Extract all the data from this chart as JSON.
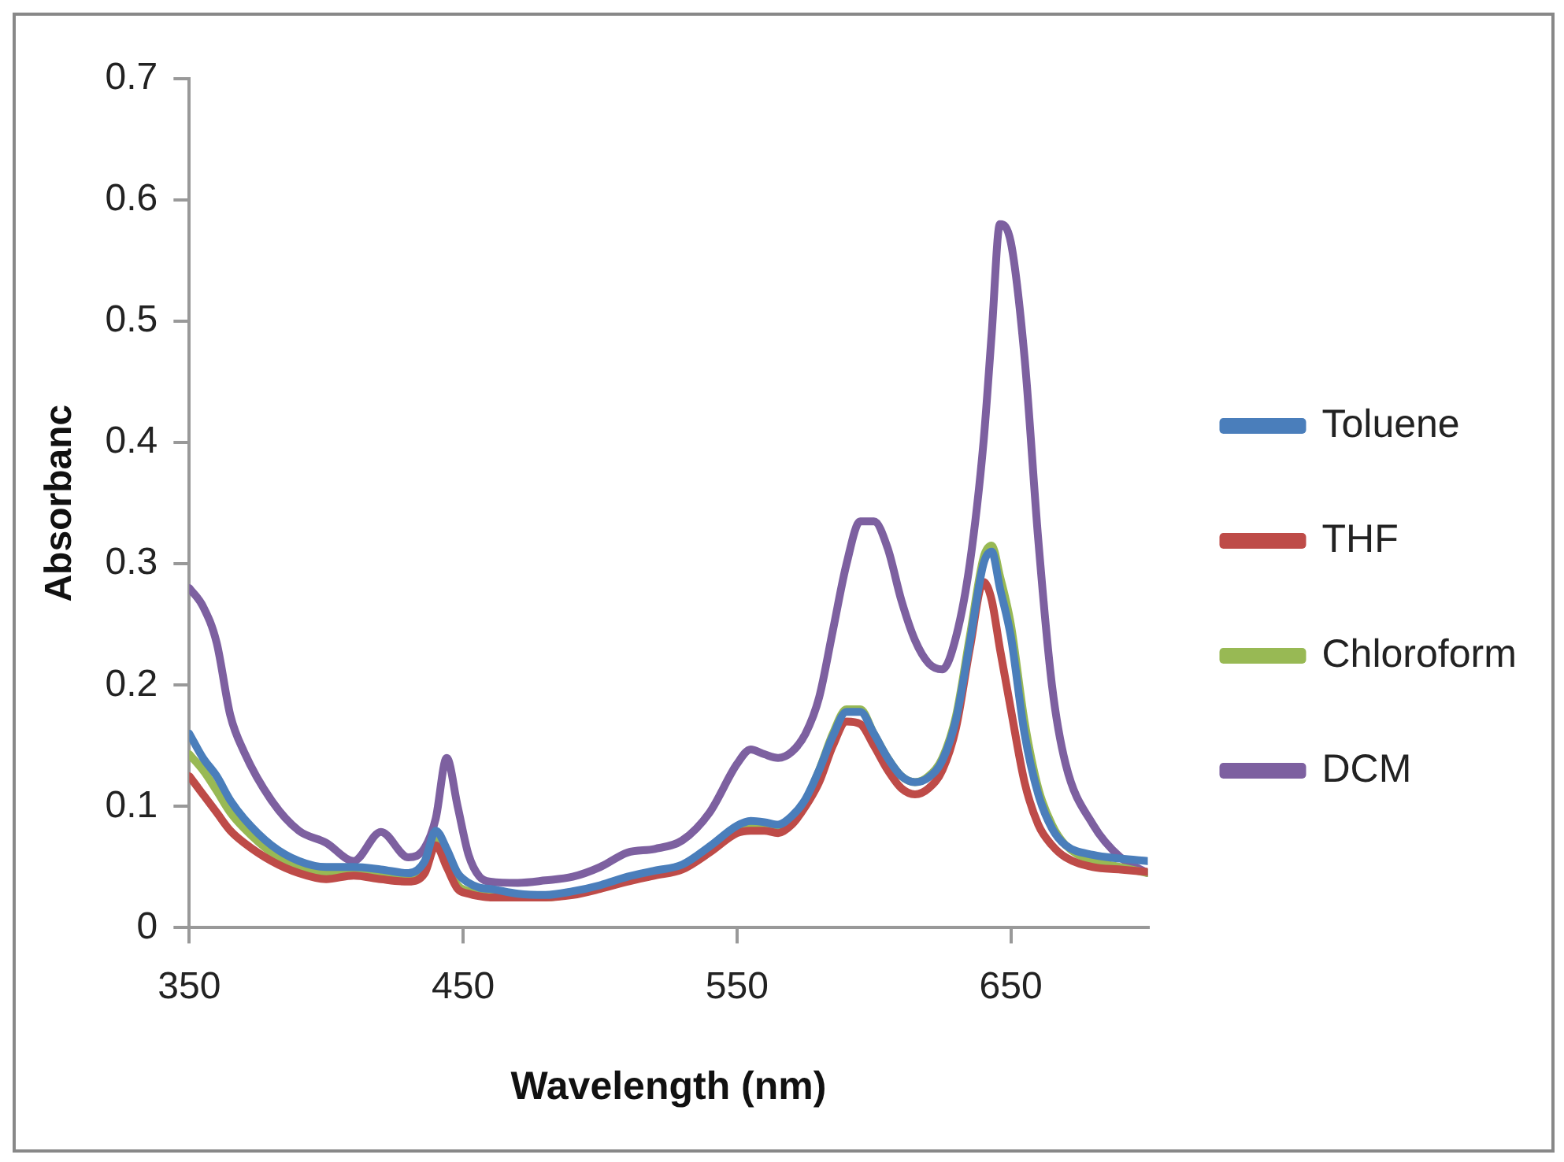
{
  "chart_data": {
    "type": "line",
    "xlabel": "Wavelength (nm)",
    "ylabel": "Absorbanc",
    "x": [
      350,
      355,
      360,
      365,
      370,
      380,
      390,
      400,
      410,
      420,
      430,
      436,
      440,
      444,
      448,
      452,
      456,
      460,
      470,
      480,
      490,
      500,
      510,
      520,
      530,
      540,
      550,
      555,
      560,
      565,
      570,
      575,
      580,
      585,
      590,
      595,
      600,
      605,
      610,
      615,
      620,
      625,
      630,
      635,
      640,
      643,
      646,
      650,
      655,
      660,
      665,
      670,
      680,
      690,
      700
    ],
    "series": [
      {
        "name": "Toluene",
        "color": "#4a7ebb",
        "values": [
          0.16,
          0.14,
          0.125,
          0.105,
          0.09,
          0.068,
          0.055,
          0.05,
          0.05,
          0.048,
          0.045,
          0.055,
          0.08,
          0.065,
          0.045,
          0.037,
          0.033,
          0.032,
          0.028,
          0.027,
          0.03,
          0.035,
          0.042,
          0.047,
          0.052,
          0.067,
          0.084,
          0.088,
          0.087,
          0.085,
          0.092,
          0.106,
          0.13,
          0.158,
          0.178,
          0.178,
          0.16,
          0.14,
          0.125,
          0.12,
          0.124,
          0.138,
          0.172,
          0.235,
          0.3,
          0.31,
          0.28,
          0.24,
          0.16,
          0.11,
          0.082,
          0.068,
          0.06,
          0.057,
          0.055
        ]
      },
      {
        "name": "THF",
        "color": "#be4b48",
        "values": [
          0.125,
          0.11,
          0.095,
          0.08,
          0.07,
          0.055,
          0.045,
          0.04,
          0.043,
          0.04,
          0.038,
          0.045,
          0.068,
          0.05,
          0.032,
          0.028,
          0.026,
          0.025,
          0.025,
          0.025,
          0.027,
          0.032,
          0.038,
          0.043,
          0.048,
          0.062,
          0.078,
          0.08,
          0.08,
          0.078,
          0.085,
          0.1,
          0.12,
          0.15,
          0.17,
          0.168,
          0.15,
          0.13,
          0.115,
          0.11,
          0.115,
          0.13,
          0.165,
          0.23,
          0.285,
          0.27,
          0.23,
          0.18,
          0.12,
          0.085,
          0.068,
          0.058,
          0.05,
          0.048,
          0.046
        ]
      },
      {
        "name": "Chloroform",
        "color": "#98b954",
        "values": [
          0.143,
          0.13,
          0.113,
          0.095,
          0.082,
          0.062,
          0.05,
          0.045,
          0.048,
          0.045,
          0.042,
          0.05,
          0.072,
          0.055,
          0.035,
          0.03,
          0.027,
          0.026,
          0.025,
          0.025,
          0.028,
          0.034,
          0.04,
          0.045,
          0.05,
          0.065,
          0.082,
          0.086,
          0.085,
          0.083,
          0.09,
          0.105,
          0.13,
          0.16,
          0.18,
          0.18,
          0.16,
          0.14,
          0.125,
          0.12,
          0.125,
          0.14,
          0.175,
          0.24,
          0.305,
          0.315,
          0.29,
          0.25,
          0.17,
          0.115,
          0.085,
          0.068,
          0.055,
          0.05,
          0.045
        ]
      },
      {
        "name": "DCM",
        "color": "#7d60a0",
        "values": [
          0.28,
          0.265,
          0.235,
          0.175,
          0.145,
          0.105,
          0.08,
          0.07,
          0.055,
          0.079,
          0.058,
          0.066,
          0.09,
          0.14,
          0.1,
          0.06,
          0.042,
          0.038,
          0.037,
          0.039,
          0.042,
          0.05,
          0.062,
          0.065,
          0.072,
          0.095,
          0.135,
          0.147,
          0.143,
          0.14,
          0.145,
          0.16,
          0.19,
          0.245,
          0.3,
          0.335,
          0.335,
          0.313,
          0.27,
          0.237,
          0.218,
          0.213,
          0.24,
          0.3,
          0.4,
          0.49,
          0.58,
          0.565,
          0.47,
          0.32,
          0.2,
          0.135,
          0.085,
          0.058,
          0.045
        ]
      }
    ],
    "xlim": [
      350,
      700
    ],
    "xticks": [
      350,
      450,
      550,
      650
    ],
    "ylim": [
      0,
      0.7
    ],
    "yticks": [
      0,
      0.1,
      0.2,
      0.3,
      0.4,
      0.5,
      0.6,
      0.7
    ],
    "grid": false,
    "legend": "right",
    "marker": "none",
    "line_style": "solid"
  }
}
